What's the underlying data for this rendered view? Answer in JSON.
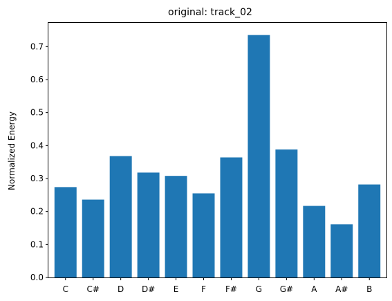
{
  "chart_data": {
    "type": "bar",
    "title": "original: track_02",
    "xlabel": "",
    "ylabel": "Normalized Energy",
    "categories": [
      "C",
      "C#",
      "D",
      "D#",
      "E",
      "F",
      "F#",
      "G",
      "G#",
      "A",
      "A#",
      "B"
    ],
    "values": [
      0.274,
      0.236,
      0.368,
      0.318,
      0.308,
      0.255,
      0.364,
      0.735,
      0.388,
      0.217,
      0.161,
      0.282
    ],
    "ylim": [
      0,
      0.772
    ],
    "yticks": [
      "0.0",
      "0.1",
      "0.2",
      "0.3",
      "0.4",
      "0.5",
      "0.6",
      "0.7"
    ],
    "grid": false,
    "bar_color": "#1f77b4"
  }
}
